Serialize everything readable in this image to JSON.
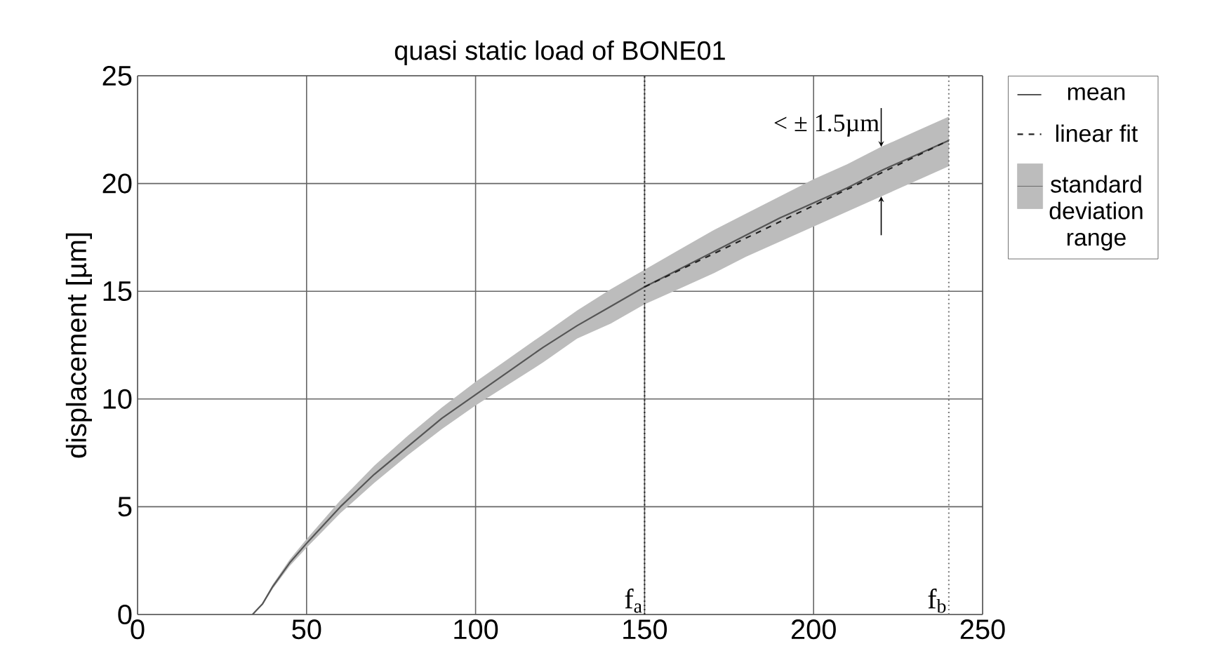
{
  "chart_data": {
    "type": "line",
    "title": "quasi static load of  BONE01",
    "ylabel": "displacement [µm]",
    "xlim": [
      0,
      250
    ],
    "ylim": [
      0,
      25
    ],
    "xticks": [
      0,
      50,
      100,
      150,
      200,
      250
    ],
    "yticks": [
      0,
      5,
      10,
      15,
      20,
      25
    ],
    "grid": true,
    "legend": "right",
    "series": [
      {
        "name": "mean",
        "line_style": "solid",
        "color": "#555555",
        "x": [
          34,
          37,
          40,
          45,
          50,
          60,
          70,
          80,
          90,
          100,
          110,
          120,
          130,
          140,
          150,
          160,
          170,
          180,
          190,
          200,
          210,
          220,
          230,
          240
        ],
        "values": [
          0,
          0.5,
          1.3,
          2.4,
          3.3,
          5.0,
          6.5,
          7.8,
          9.1,
          10.2,
          11.3,
          12.4,
          13.4,
          14.3,
          15.2,
          16.0,
          16.8,
          17.6,
          18.4,
          19.1,
          19.8,
          20.6,
          21.3,
          22.0
        ],
        "lower": [
          0,
          0.45,
          1.2,
          2.25,
          3.1,
          4.7,
          6.1,
          7.4,
          8.6,
          9.7,
          10.7,
          11.7,
          12.8,
          13.5,
          14.4,
          15.1,
          15.8,
          16.6,
          17.3,
          18.0,
          18.7,
          19.4,
          20.1,
          20.8
        ],
        "upper": [
          0,
          0.55,
          1.4,
          2.55,
          3.5,
          5.3,
          6.9,
          8.3,
          9.6,
          10.8,
          11.9,
          13.0,
          14.1,
          15.1,
          16.0,
          16.9,
          17.8,
          18.6,
          19.4,
          20.2,
          20.9,
          21.7,
          22.4,
          23.1
        ]
      },
      {
        "name": "linear fit",
        "line_style": "dashed",
        "color": "#222222",
        "x": [
          150,
          240
        ],
        "values": [
          15.2,
          22.0
        ]
      }
    ],
    "ref_lines": [
      {
        "axis": "x",
        "value": 150,
        "label": "f$_{a}$",
        "line_style": "dotted",
        "color": "#222222"
      },
      {
        "axis": "x",
        "value": 240,
        "label": "f$_{b}$",
        "line_style": "dotted",
        "color": "#777777"
      }
    ],
    "annotations": [
      {
        "text": "< ± 1.5µm",
        "x": 220,
        "y": 21.7
      },
      "standard deviation range"
    ]
  }
}
